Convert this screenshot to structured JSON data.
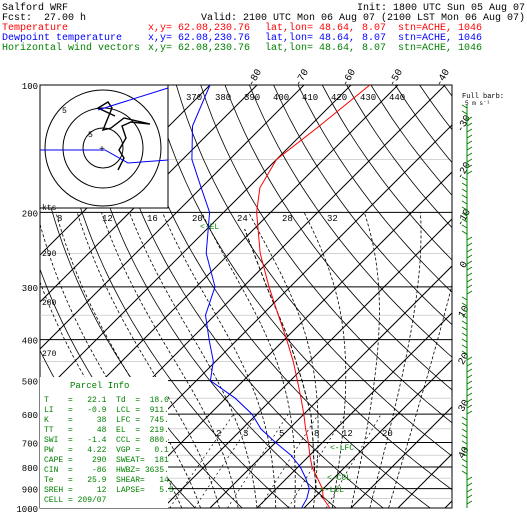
{
  "header": {
    "model": "Salford WRF",
    "init": "Init: 1800 UTC Sun 05 Aug 07",
    "fcst_label": "Fcst:",
    "fcst_value": "27.00 h",
    "valid": "Valid: 2100 UTC Mon 06 Aug 07 (2100 LST Mon 06 Aug 07)",
    "rows": [
      {
        "label": "Temperature",
        "xy": "x,y= 62.08,230.76",
        "latlon": "lat,lon= 48.64,",
        "lon": "8.07",
        "stn": "stn=ACHE, 1046",
        "color": "#ff0000"
      },
      {
        "label": "Dewpoint temperature",
        "xy": "x,y= 62.08,230.76",
        "latlon": "lat,lon= 48.64,",
        "lon": "8.07",
        "stn": "stn=ACHE, 1046",
        "color": "#0000ff"
      },
      {
        "label": "Horizontal wind vectors",
        "xy": "x,y= 62.08,230.76",
        "latlon": "lat,lon= 48.64,",
        "lon": "8.07",
        "stn": "stn=ACHE, 1046",
        "color": "#008000"
      }
    ]
  },
  "barb_legend": "Full barb:",
  "barb_legend_unit": "5 m s⁻¹",
  "hodograph": {
    "unit_label": "kts",
    "ring_labels": [
      "5",
      "5"
    ]
  },
  "parcel": {
    "title": "Parcel Info",
    "rows": [
      "T    =   22.1  Td  =  18.6",
      "LI   =   -0.9  LCL =  911.",
      "K    =     38  LFC =  745.",
      "TT   =     48  EL  =  219.",
      "SWI  =   -1.4  CCL =  880.",
      "PW   =   4.22  VGP =   0.1",
      "CAPE =    290  SWEAT=  181",
      "CIN  =    -86  HWBZ= 3635.",
      "Te   =   25.9  SHEAR=   14.",
      "SREH =     12  LAPSE=   5.5",
      "CELL = 209/07"
    ]
  },
  "chart_data": {
    "type": "skew-t",
    "pressure_levels": [
      100,
      200,
      300,
      400,
      500,
      600,
      700,
      800,
      900,
      1000
    ],
    "height_labels": [
      "100",
      "200",
      "300",
      "400",
      "500",
      "600",
      "700",
      "800",
      "900",
      "1000"
    ],
    "temperature_ticks": [
      -80,
      -70,
      -60,
      -50,
      -40,
      -30,
      -20,
      -10,
      0,
      10,
      20,
      30,
      40
    ],
    "theta_labels": [
      "370",
      "380",
      "390",
      "400",
      "410",
      "420",
      "430",
      "440"
    ],
    "mixing_ratio_labels": [
      "2",
      "3",
      "5",
      "8",
      "12",
      "20"
    ],
    "theta_e_labels": [
      "8",
      "12",
      "16",
      "20",
      "24",
      "28",
      "32"
    ],
    "left_small_labels": [
      "290",
      "280",
      "270"
    ],
    "annotations": [
      "EL",
      "LFC",
      "CCL",
      "LCL"
    ],
    "temperature_profile": [
      {
        "p": 1000,
        "t": 25.5
      },
      {
        "p": 950,
        "t": 22.1
      },
      {
        "p": 900,
        "t": 19.8
      },
      {
        "p": 850,
        "t": 16.5
      },
      {
        "p": 800,
        "t": 13.0
      },
      {
        "p": 750,
        "t": 10.0
      },
      {
        "p": 700,
        "t": 7.0
      },
      {
        "p": 650,
        "t": 3.5
      },
      {
        "p": 600,
        "t": 0.0
      },
      {
        "p": 550,
        "t": -4.0
      },
      {
        "p": 500,
        "t": -8.5
      },
      {
        "p": 450,
        "t": -13.5
      },
      {
        "p": 400,
        "t": -19.5
      },
      {
        "p": 350,
        "t": -26.5
      },
      {
        "p": 300,
        "t": -34.5
      },
      {
        "p": 250,
        "t": -43.5
      },
      {
        "p": 200,
        "t": -53.0
      },
      {
        "p": 175,
        "t": -57.5
      },
      {
        "p": 150,
        "t": -60.0
      },
      {
        "p": 125,
        "t": -58.0
      },
      {
        "p": 100,
        "t": -56.0
      }
    ],
    "dewpoint_profile": [
      {
        "p": 1000,
        "t": 19.5
      },
      {
        "p": 950,
        "t": 18.6
      },
      {
        "p": 900,
        "t": 17.0
      },
      {
        "p": 850,
        "t": 14.0
      },
      {
        "p": 800,
        "t": 10.5
      },
      {
        "p": 750,
        "t": 6.0
      },
      {
        "p": 700,
        "t": 0.0
      },
      {
        "p": 650,
        "t": -6.0
      },
      {
        "p": 600,
        "t": -11.0
      },
      {
        "p": 550,
        "t": -18.0
      },
      {
        "p": 500,
        "t": -27.0
      },
      {
        "p": 450,
        "t": -30.5
      },
      {
        "p": 400,
        "t": -36.0
      },
      {
        "p": 350,
        "t": -42.0
      },
      {
        "p": 300,
        "t": -46.0
      },
      {
        "p": 250,
        "t": -55.0
      },
      {
        "p": 200,
        "t": -63.0
      },
      {
        "p": 175,
        "t": -70.0
      },
      {
        "p": 150,
        "t": -78.0
      },
      {
        "p": 125,
        "t": -85.0
      },
      {
        "p": 100,
        "t": -90.0
      }
    ],
    "parcel_path": [
      {
        "p": 950,
        "t": 22.1
      },
      {
        "p": 911,
        "t": 19.0
      },
      {
        "p": 850,
        "t": 16.0
      },
      {
        "p": 800,
        "t": 13.5
      },
      {
        "p": 745,
        "t": 10.5
      },
      {
        "p": 700,
        "t": 8.0
      },
      {
        "p": 600,
        "t": 1.5
      },
      {
        "p": 500,
        "t": -7.5
      },
      {
        "p": 400,
        "t": -19.0
      },
      {
        "p": 300,
        "t": -35.0
      },
      {
        "p": 219,
        "t": -52.0
      }
    ]
  }
}
